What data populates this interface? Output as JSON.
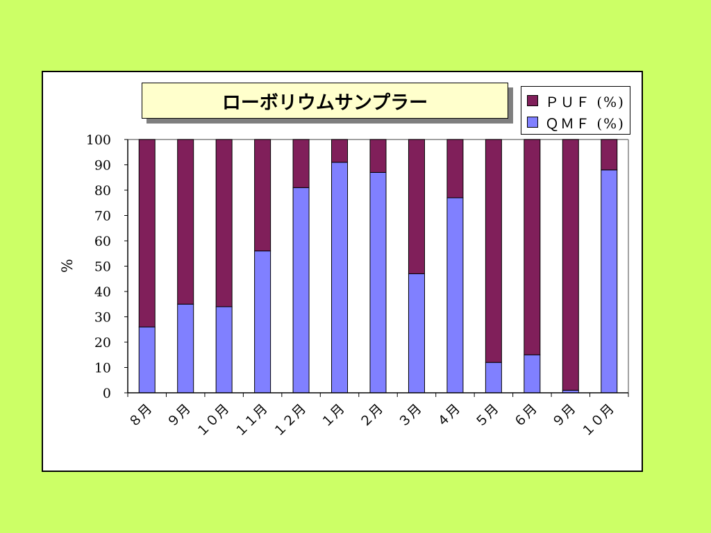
{
  "chart_data": {
    "type": "bar",
    "stacked": true,
    "title": "ローボリウムサンプラー",
    "ylabel": "%",
    "xlabel": "",
    "ylim": [
      0,
      100
    ],
    "yticks": [
      0,
      10,
      20,
      30,
      40,
      50,
      60,
      70,
      80,
      90,
      100
    ],
    "grid": false,
    "legend_position": "top-right",
    "categories": [
      "８月",
      "９月",
      "１０月",
      "１１月",
      "１２月",
      "１月",
      "２月",
      "３月",
      "４月",
      "５月",
      "６月",
      "９月",
      "１０月"
    ],
    "series": [
      {
        "name": "QMF (%)",
        "color": "#8080ff",
        "values": [
          26,
          35,
          34,
          56,
          81,
          91,
          87,
          47,
          77,
          12,
          15,
          1,
          88
        ]
      },
      {
        "name": "PUF (%)",
        "color": "#801f5a",
        "values": [
          74,
          65,
          66,
          44,
          19,
          9,
          13,
          53,
          23,
          88,
          85,
          99,
          12
        ]
      }
    ]
  },
  "legend": {
    "puf_label": "ＰＵＦ (%)",
    "qmf_label": "ＱＭＦ (%)"
  },
  "colors": {
    "page_background": "#ccff66",
    "title_background": "#ffffcc",
    "puf": "#801f5a",
    "qmf": "#8080ff"
  }
}
